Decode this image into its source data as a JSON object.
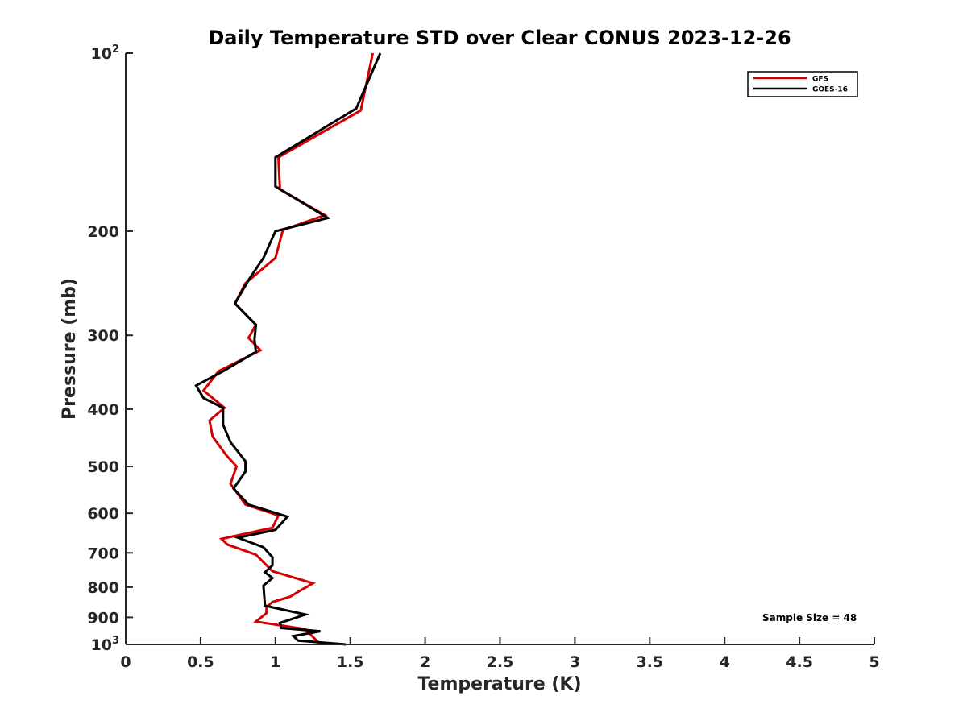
{
  "chart_data": {
    "type": "line",
    "title": "Daily Temperature STD over Clear CONUS 2023-12-26",
    "xlabel": "Temperature (K)",
    "ylabel": "Pressure (mb)",
    "xlim": [
      0,
      5
    ],
    "ylim": [
      100,
      1000
    ],
    "y_scale": "log",
    "y_reversed": true,
    "grid": false,
    "legend_position": "top-right",
    "x_ticks": [
      "0",
      "0.5",
      "1",
      "1.5",
      "2",
      "2.5",
      "3",
      "3.5",
      "4",
      "4.5",
      "5"
    ],
    "y_ticks": [
      {
        "value": 100,
        "base": "10",
        "exp": "2"
      },
      {
        "value": 200,
        "label": "200"
      },
      {
        "value": 300,
        "label": "300"
      },
      {
        "value": 400,
        "label": "400"
      },
      {
        "value": 500,
        "label": "500"
      },
      {
        "value": 600,
        "label": "600"
      },
      {
        "value": 700,
        "label": "700"
      },
      {
        "value": 800,
        "label": "800"
      },
      {
        "value": 900,
        "label": "900"
      },
      {
        "value": 1000,
        "base": "10",
        "exp": "3"
      }
    ],
    "annotation": "Sample Size = 48",
    "series": [
      {
        "name": "GFS",
        "color": "#d40000",
        "points": [
          [
            1.65,
            100
          ],
          [
            1.57,
            125
          ],
          [
            1.02,
            150
          ],
          [
            1.03,
            170
          ],
          [
            1.33,
            188
          ],
          [
            1.05,
            199
          ],
          [
            1.0,
            222
          ],
          [
            0.8,
            245
          ],
          [
            0.73,
            265
          ],
          [
            0.87,
            288
          ],
          [
            0.82,
            303
          ],
          [
            0.9,
            318
          ],
          [
            0.62,
            345
          ],
          [
            0.52,
            372
          ],
          [
            0.66,
            398
          ],
          [
            0.56,
            418
          ],
          [
            0.58,
            445
          ],
          [
            0.67,
            478
          ],
          [
            0.74,
            500
          ],
          [
            0.7,
            535
          ],
          [
            0.8,
            580
          ],
          [
            1.02,
            605
          ],
          [
            0.98,
            635
          ],
          [
            0.64,
            663
          ],
          [
            0.68,
            678
          ],
          [
            0.87,
            705
          ],
          [
            0.98,
            752
          ],
          [
            1.25,
            788
          ],
          [
            1.15,
            815
          ],
          [
            1.1,
            830
          ],
          [
            0.98,
            848
          ],
          [
            0.94,
            865
          ],
          [
            0.94,
            885
          ],
          [
            0.87,
            915
          ],
          [
            1.2,
            942
          ],
          [
            1.3,
            1000
          ]
        ]
      },
      {
        "name": "GOES-16",
        "color": "#000000",
        "points": [
          [
            1.7,
            100
          ],
          [
            1.54,
            124
          ],
          [
            1.0,
            150
          ],
          [
            1.0,
            168
          ],
          [
            1.35,
            190
          ],
          [
            1.0,
            200
          ],
          [
            0.92,
            222
          ],
          [
            0.82,
            242
          ],
          [
            0.73,
            265
          ],
          [
            0.87,
            288
          ],
          [
            0.86,
            305
          ],
          [
            0.87,
            320
          ],
          [
            0.65,
            345
          ],
          [
            0.47,
            365
          ],
          [
            0.52,
            383
          ],
          [
            0.65,
            398
          ],
          [
            0.65,
            425
          ],
          [
            0.7,
            455
          ],
          [
            0.8,
            490
          ],
          [
            0.8,
            510
          ],
          [
            0.72,
            545
          ],
          [
            0.82,
            580
          ],
          [
            1.08,
            608
          ],
          [
            1.0,
            640
          ],
          [
            0.75,
            660
          ],
          [
            0.92,
            685
          ],
          [
            0.98,
            712
          ],
          [
            0.98,
            735
          ],
          [
            0.93,
            755
          ],
          [
            0.98,
            772
          ],
          [
            0.92,
            795
          ],
          [
            0.93,
            860
          ],
          [
            1.2,
            890
          ],
          [
            1.03,
            920
          ],
          [
            1.04,
            938
          ],
          [
            1.3,
            950
          ],
          [
            1.12,
            968
          ],
          [
            1.15,
            985
          ],
          [
            1.47,
            1000
          ]
        ]
      }
    ]
  }
}
